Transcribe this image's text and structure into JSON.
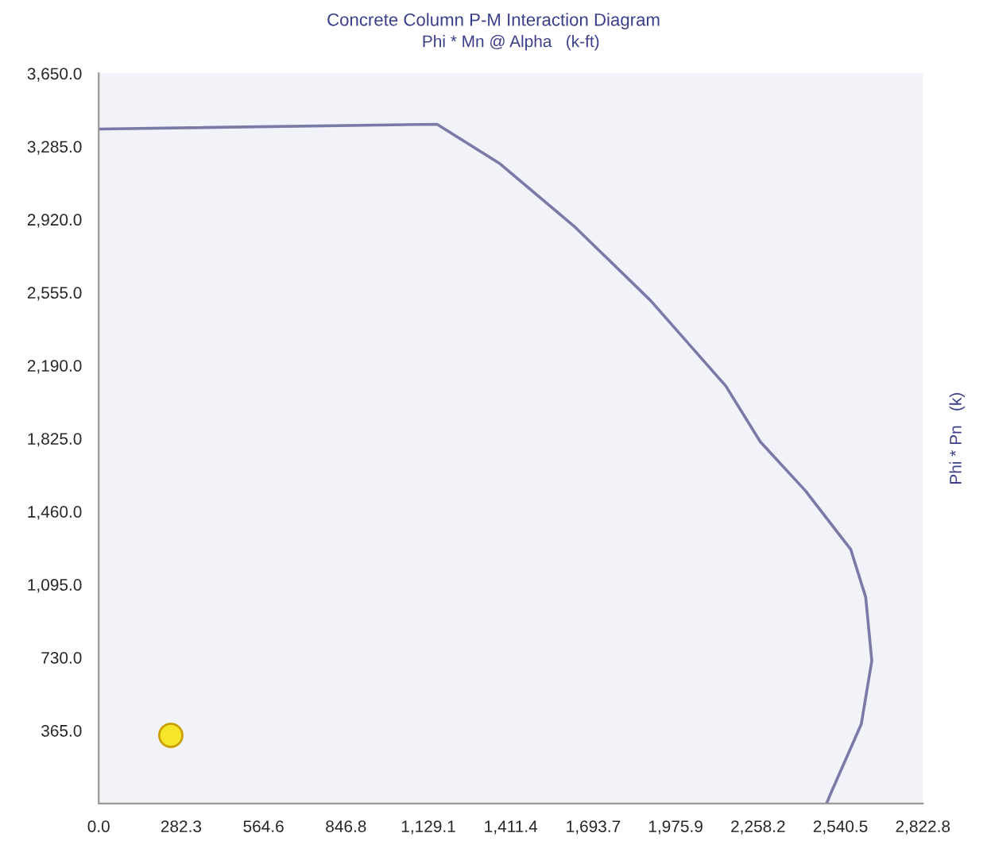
{
  "chart_data": {
    "type": "line",
    "title": "Concrete Column P-M Interaction Diagram",
    "xlabel": "Phi * Mn @ Alpha   (k-ft)",
    "ylabel": "Phi * Pn   (k)",
    "xlim": [
      0,
      2822.8
    ],
    "ylim": [
      0,
      3650
    ],
    "xticks": [
      {
        "value": 0,
        "label": "0.0"
      },
      {
        "value": 282.28,
        "label": "282.3"
      },
      {
        "value": 564.56,
        "label": "564.6"
      },
      {
        "value": 846.84,
        "label": "846.8"
      },
      {
        "value": 1129.12,
        "label": "1,129.1"
      },
      {
        "value": 1411.4,
        "label": "1,411.4"
      },
      {
        "value": 1693.68,
        "label": "1,693.7"
      },
      {
        "value": 1975.9,
        "label": "1,975.9"
      },
      {
        "value": 2258.24,
        "label": "2,258.2"
      },
      {
        "value": 2540.52,
        "label": "2,540.5"
      },
      {
        "value": 2822.8,
        "label": "2,822.8"
      }
    ],
    "yticks": [
      {
        "value": 365,
        "label": "365.0"
      },
      {
        "value": 730,
        "label": "730.0"
      },
      {
        "value": 1095,
        "label": "1,095.0"
      },
      {
        "value": 1460,
        "label": "1,460.0"
      },
      {
        "value": 1825,
        "label": "1,825.0"
      },
      {
        "value": 2190,
        "label": "2,190.0"
      },
      {
        "value": 2555,
        "label": "2,555.0"
      },
      {
        "value": 2920,
        "label": "2,920.0"
      },
      {
        "value": 3285,
        "label": "3,285.0"
      },
      {
        "value": 3650,
        "label": "3,650.0"
      }
    ],
    "grid": false,
    "legend": false,
    "series": [
      {
        "color": "#7a7aa8",
        "marker": "none",
        "line_style": "solid",
        "x": [
          0,
          1159,
          1375,
          1633,
          1890,
          2148,
          2266,
          2421,
          2576,
          2627,
          2648,
          2612,
          2509,
          2493
        ],
        "values": [
          3372,
          3396,
          3198,
          2880,
          2515,
          2087,
          1809,
          1563,
          1270,
          1032,
          714,
          397,
          56,
          0
        ]
      },
      {
        "type": "scatter",
        "color": "#f5e62a",
        "marker": "circle",
        "x": [
          247
        ],
        "values": [
          341
        ]
      }
    ]
  }
}
